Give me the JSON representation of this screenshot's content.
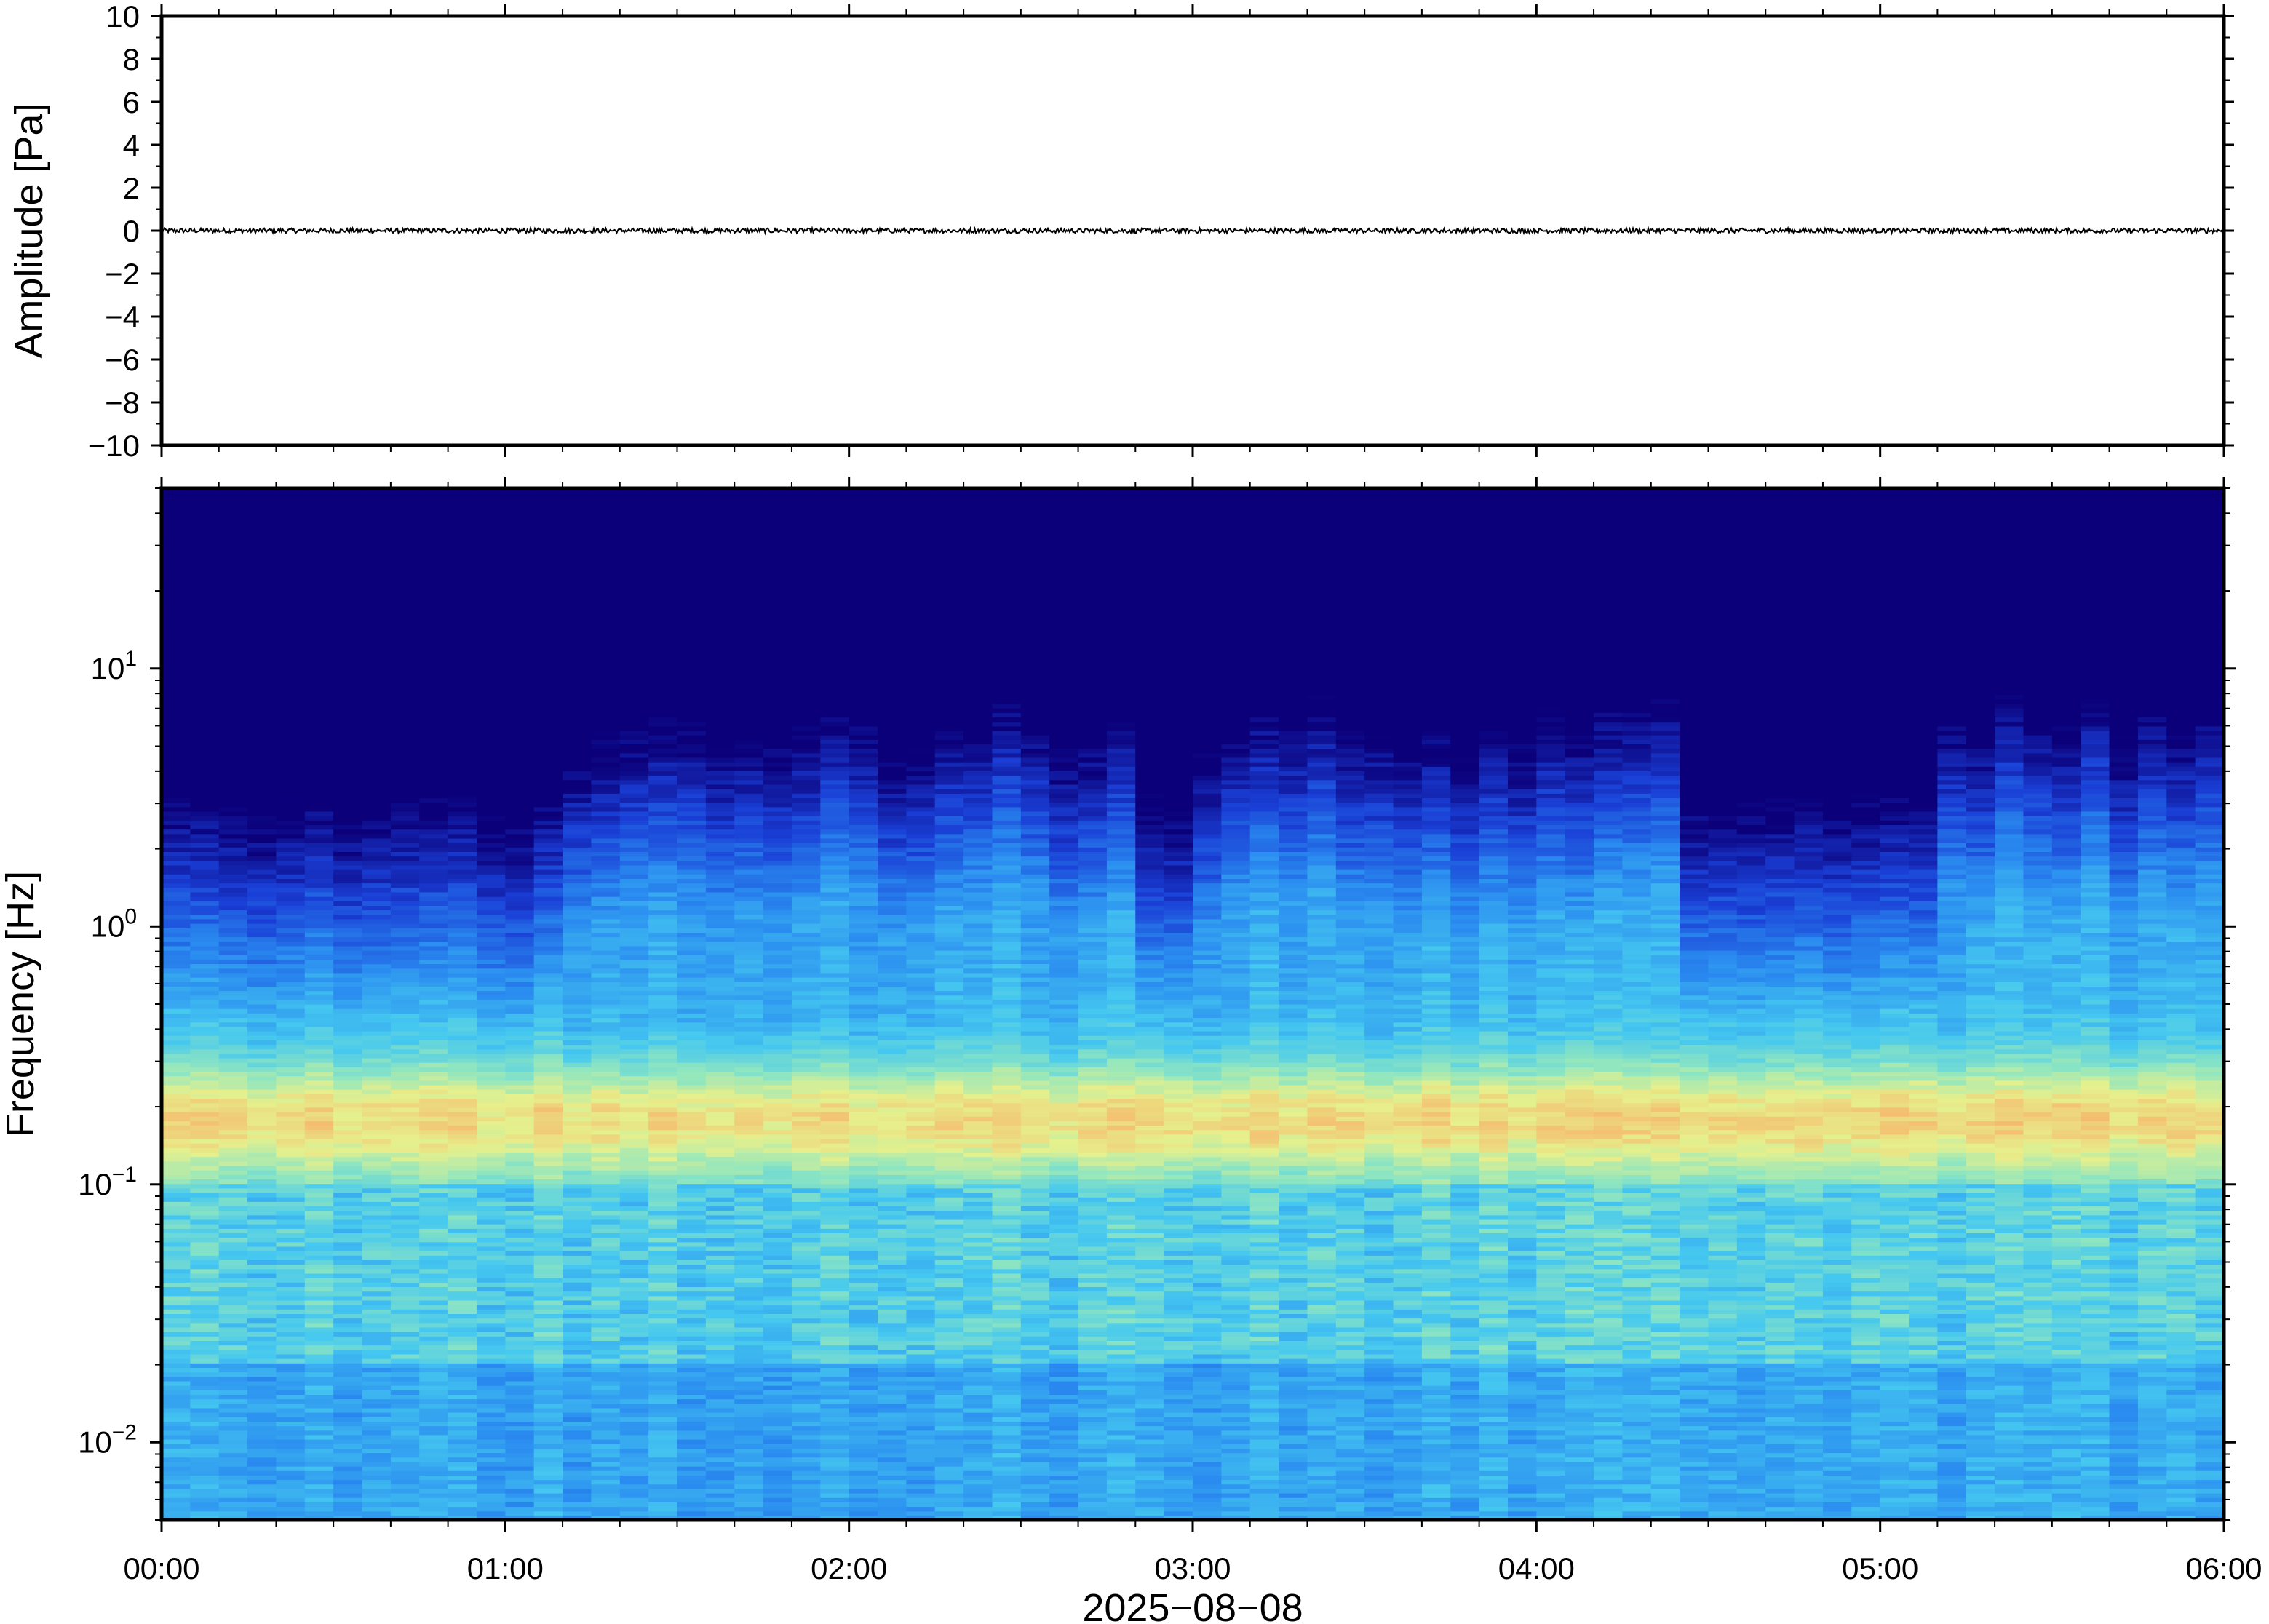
{
  "chart_data": [
    {
      "type": "line",
      "panel": "waveform",
      "ylabel": "Amplitude [Pa]",
      "ylim": [
        -10,
        10
      ],
      "yticks": [
        10,
        8,
        6,
        4,
        2,
        0,
        -2,
        -4,
        -6,
        -8,
        -10
      ],
      "ytick_labels": [
        "10",
        "8",
        "6",
        "4",
        "2",
        "0",
        "−2",
        "−4",
        "−6",
        "−8",
        "−10"
      ],
      "xlim": [
        "00:00",
        "06:00"
      ],
      "series": [
        {
          "values_summary": "near-zero noise trace, amplitude approx ±0.1 Pa across 00:00–06:00",
          "color": "#000000"
        }
      ]
    },
    {
      "type": "heatmap",
      "panel": "spectrogram",
      "ylabel": "Frequency [Hz]",
      "yscale": "log",
      "ylim": [
        0.005,
        50
      ],
      "yticks": [
        10,
        1,
        0.1,
        0.01
      ],
      "ytick_labels": [
        {
          "base": "10",
          "exp": "1"
        },
        {
          "base": "10",
          "exp": "0"
        },
        {
          "base": "10",
          "exp": "−1"
        },
        {
          "base": "10",
          "exp": "−2"
        }
      ],
      "xlabel": "2025−08−08",
      "xticks": [
        "00:00",
        "01:00",
        "02:00",
        "03:00",
        "04:00",
        "05:00",
        "06:00"
      ],
      "colormap": [
        "#0b007a",
        "#1a3fd6",
        "#2a8cf0",
        "#45c8f0",
        "#8fe6c0",
        "#e6f08c",
        "#f7b46a"
      ],
      "features": [
        {
          "description": "microseism band",
          "frequency_hz": 0.18,
          "level": "high"
        },
        {
          "description": "quiet upper band",
          "frequency_hz_above": 10,
          "level": "low"
        },
        {
          "description": "low-activity periods",
          "intervals": [
            [
              "00:00",
              "01:08"
            ],
            [
              "02:48",
              "02:58"
            ],
            [
              "04:25",
              "05:10"
            ]
          ]
        }
      ]
    }
  ]
}
